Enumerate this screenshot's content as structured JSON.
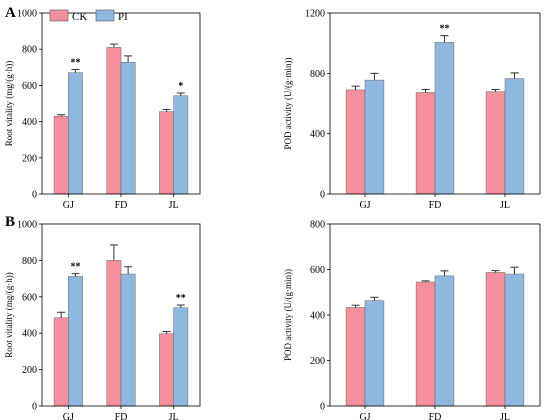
{
  "panel_labels": [
    "A",
    "B"
  ],
  "legend": [
    {
      "name": "CK",
      "color": "#f4909b"
    },
    {
      "name": "PI",
      "color": "#8fb8e0"
    }
  ],
  "chart_data": [
    {
      "type": "bar",
      "panel": "A",
      "categories": [
        "GJ",
        "FD",
        "JL"
      ],
      "series": [
        {
          "name": "CK",
          "values": [
            430,
            810,
            455
          ],
          "errors": [
            8,
            18,
            12
          ]
        },
        {
          "name": "PI",
          "values": [
            670,
            728,
            543
          ],
          "errors": [
            18,
            35,
            15
          ]
        }
      ],
      "significance": [
        "**",
        "",
        "*"
      ],
      "ylabel": "Root vitality (mg/(g·h))",
      "ylim": [
        0,
        1000
      ],
      "yticks": [
        0,
        200,
        400,
        600,
        800,
        1000
      ]
    },
    {
      "type": "bar",
      "panel": "A",
      "categories": [
        "GJ",
        "FD",
        "JL"
      ],
      "series": [
        {
          "name": "CK",
          "values": [
            690,
            673,
            678
          ],
          "errors": [
            25,
            20,
            15
          ]
        },
        {
          "name": "PI",
          "values": [
            755,
            1005,
            765
          ],
          "errors": [
            45,
            45,
            38
          ]
        }
      ],
      "significance": [
        "",
        "**",
        ""
      ],
      "ylabel": "POD activity (U/(g·min))",
      "ylim": [
        0,
        1200
      ],
      "yticks": [
        0,
        400,
        800,
        1200
      ]
    },
    {
      "type": "bar",
      "panel": "B",
      "categories": [
        "GJ",
        "FD",
        "JL"
      ],
      "series": [
        {
          "name": "CK",
          "values": [
            485,
            800,
            397
          ],
          "errors": [
            30,
            85,
            12
          ]
        },
        {
          "name": "PI",
          "values": [
            712,
            725,
            540
          ],
          "errors": [
            15,
            40,
            15
          ]
        }
      ],
      "significance": [
        "**",
        "",
        "**"
      ],
      "ylabel": "Root vitality (mg/(g·h))",
      "ylim": [
        0,
        1000
      ],
      "yticks": [
        0,
        200,
        400,
        600,
        800,
        1000
      ]
    },
    {
      "type": "bar",
      "panel": "B",
      "categories": [
        "GJ",
        "FD",
        "JL"
      ],
      "series": [
        {
          "name": "CK",
          "values": [
            433,
            545,
            587
          ],
          "errors": [
            10,
            5,
            8
          ]
        },
        {
          "name": "PI",
          "values": [
            463,
            572,
            580
          ],
          "errors": [
            15,
            22,
            30
          ]
        }
      ],
      "significance": [
        "",
        "",
        ""
      ],
      "ylabel": "POD activity (U/(g·min))",
      "ylim": [
        0,
        800
      ],
      "yticks": [
        0,
        200,
        400,
        600,
        800
      ]
    }
  ]
}
